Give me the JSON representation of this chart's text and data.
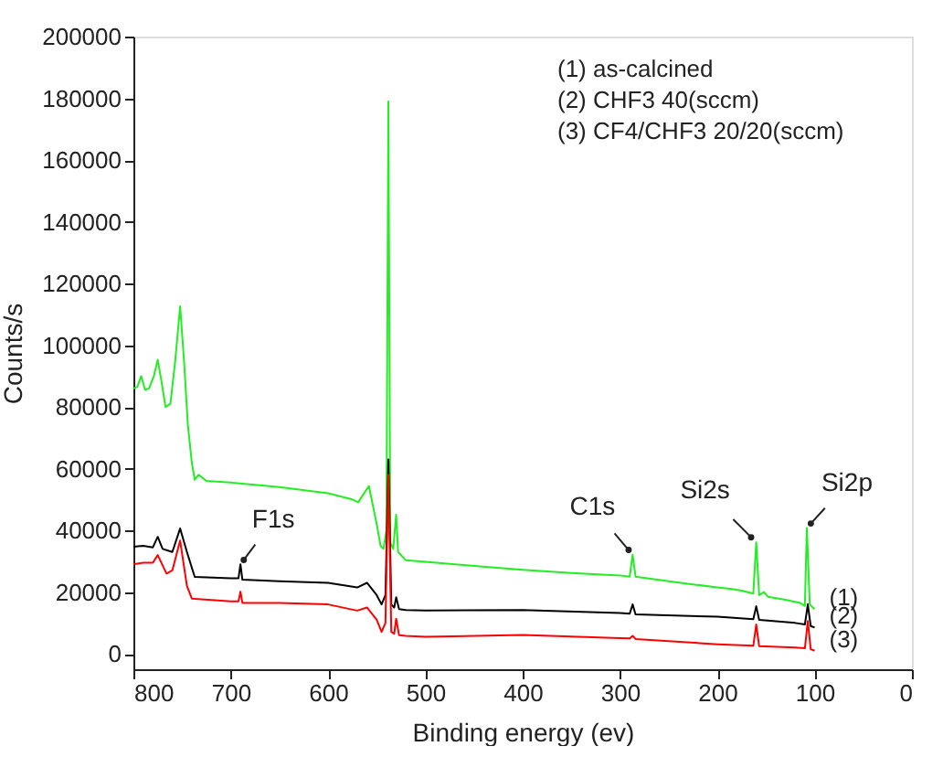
{
  "chart_data": {
    "type": "line",
    "xlabel": "Binding energy (ev)",
    "ylabel": "Counts/s",
    "xlim": [
      800,
      0
    ],
    "xticks": [
      800,
      700,
      600,
      500,
      400,
      300,
      200,
      100,
      0
    ],
    "ylim": [
      -5000,
      200000
    ],
    "yticks": [
      0,
      20000,
      40000,
      60000,
      80000,
      100000,
      120000,
      140000,
      160000,
      180000,
      200000
    ],
    "grid": false,
    "legend": false,
    "marker": "none",
    "line_style": "solid",
    "annotations": [
      "(1) as-calcined",
      "(2) CHF3 40(sccm)",
      "(3) CF4/CHF3 20/20(sccm)",
      {
        "text": "F1s",
        "x": 690,
        "y": 29000
      },
      {
        "text": "C1s",
        "x": 287,
        "y": 32100
      },
      {
        "text": "Si2s",
        "x": 160,
        "y": 36100
      },
      {
        "text": "Si2p",
        "x": 108,
        "y": 40800
      }
    ],
    "series": [
      {
        "name": "(1)",
        "color": "#22ee22",
        "x": [
          800,
          796,
          792,
          788,
          784,
          779,
          775,
          771,
          767,
          762,
          757,
          752,
          748,
          744,
          740,
          737,
          733,
          725,
          700,
          650,
          600,
          575,
          569,
          558,
          550,
          546,
          543,
          540,
          538,
          536,
          533,
          530,
          528,
          520,
          500,
          450,
          400,
          350,
          300,
          290,
          287,
          284,
          250,
          200,
          185,
          175,
          163,
          160,
          157,
          152,
          148,
          130,
          115,
          110,
          108,
          105,
          100
        ],
        "values": [
          86000,
          86500,
          90000,
          85500,
          86000,
          90000,
          95300,
          88000,
          80000,
          81000,
          95000,
          112600,
          95000,
          74000,
          62000,
          56400,
          58000,
          56000,
          55500,
          54000,
          52000,
          50000,
          49100,
          54400,
          42000,
          35000,
          34000,
          40000,
          179000,
          36000,
          34000,
          45100,
          33000,
          30300,
          29800,
          28500,
          27200,
          26200,
          25400,
          25000,
          32100,
          25000,
          23500,
          21500,
          21000,
          20500,
          19500,
          36100,
          19000,
          20000,
          18500,
          17500,
          16500,
          15500,
          40800,
          16000,
          14500
        ]
      },
      {
        "name": "(2)",
        "color": "#000000",
        "x": [
          800,
          790,
          780,
          775,
          770,
          760,
          752,
          745,
          737,
          700,
          692,
          690,
          688,
          650,
          600,
          570,
          560,
          550,
          545,
          541,
          538,
          535,
          532,
          530,
          527,
          520,
          500,
          400,
          300,
          290,
          287,
          284,
          200,
          163,
          160,
          157,
          120,
          110,
          107,
          104,
          100
        ],
        "values": [
          34700,
          35000,
          34500,
          37900,
          34000,
          33000,
          40600,
          33000,
          24900,
          24500,
          24500,
          29000,
          24000,
          23500,
          23000,
          21500,
          23000,
          19000,
          16000,
          19000,
          63000,
          16000,
          15000,
          18300,
          14500,
          14200,
          14000,
          14200,
          13200,
          13000,
          16000,
          12800,
          12000,
          11200,
          15400,
          11000,
          10000,
          9500,
          16000,
          9000,
          8500
        ]
      },
      {
        "name": "(3)",
        "color": "#ff0000",
        "x": [
          800,
          790,
          780,
          775,
          766,
          760,
          752,
          745,
          740,
          700,
          692,
          690,
          688,
          650,
          600,
          570,
          560,
          550,
          545,
          541,
          538,
          535,
          532,
          530,
          527,
          520,
          500,
          400,
          300,
          290,
          287,
          284,
          200,
          163,
          160,
          157,
          120,
          110,
          107,
          104,
          100
        ],
        "values": [
          29000,
          29500,
          29500,
          32000,
          26000,
          27000,
          36700,
          22000,
          17900,
          17000,
          17000,
          20100,
          16500,
          16500,
          16000,
          14000,
          15000,
          11000,
          7100,
          10000,
          58000,
          7100,
          6500,
          11400,
          6000,
          5800,
          5500,
          6100,
          5100,
          5000,
          5800,
          4800,
          3100,
          2600,
          9500,
          2500,
          2000,
          1800,
          10600,
          1500,
          1000
        ]
      }
    ]
  }
}
